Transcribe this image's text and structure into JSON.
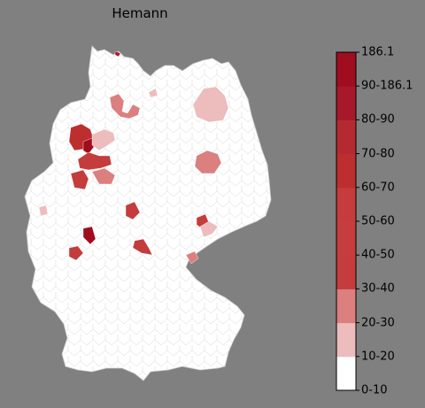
{
  "title": "Hemann",
  "colorbar": {
    "labels": [
      "186.1",
      "90-186.1",
      "80-90",
      "70-80",
      "60-70",
      "50-60",
      "40-50",
      "30-40",
      "20-30",
      "10-20",
      "0-10"
    ],
    "bands": [
      "#ffffff",
      "#edbcbc",
      "#dc7f7f",
      "#c43c3c",
      "#c53d3d",
      "#c63b3b",
      "#bd2e2e",
      "#b52a31",
      "#a8182b",
      "#a00d1e"
    ]
  },
  "regions": [
    {
      "name": "region-north-schleswig",
      "color": "#a8182b"
    },
    {
      "name": "region-bremen-area",
      "color": "#dc7f7f"
    },
    {
      "name": "region-hamburg-east",
      "color": "#edbcbc"
    },
    {
      "name": "region-berlin",
      "color": "#edbcbc"
    },
    {
      "name": "region-emsland",
      "color": "#bd2e2e"
    },
    {
      "name": "region-muenster",
      "color": "#a00d1e"
    },
    {
      "name": "region-osnabrueck",
      "color": "#edbcbc"
    },
    {
      "name": "region-ruhr",
      "color": "#c43c3c"
    },
    {
      "name": "region-cologne",
      "color": "#c43c3c"
    },
    {
      "name": "region-sauerland",
      "color": "#dc7f7f"
    },
    {
      "name": "region-aachen",
      "color": "#edbcbc"
    },
    {
      "name": "region-fulda",
      "color": "#c43c3c"
    },
    {
      "name": "region-frankfurt",
      "color": "#a00d1e"
    },
    {
      "name": "region-saarbruecken",
      "color": "#c43c3c"
    },
    {
      "name": "region-wuerzburg",
      "color": "#c43c3c"
    },
    {
      "name": "region-magdeburg",
      "color": "#dc7f7f"
    },
    {
      "name": "region-leipzig",
      "color": "#c43c3c"
    },
    {
      "name": "region-dresden",
      "color": "#edbcbc"
    },
    {
      "name": "region-vogtland",
      "color": "#dc7f7f"
    }
  ]
}
